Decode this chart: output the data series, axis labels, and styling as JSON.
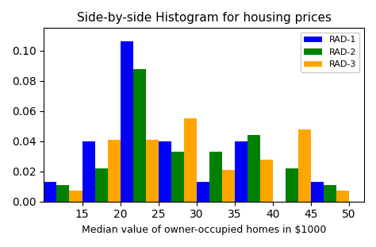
{
  "title": "Side-by-side Histogram for housing prices",
  "xlabel": "Median value of owner-occupied homes in $1000",
  "xticks": [
    15,
    20,
    25,
    30,
    35,
    40,
    45,
    50
  ],
  "yticks": [
    0.0,
    0.02,
    0.04,
    0.06,
    0.08,
    0.1
  ],
  "ylim": [
    0,
    0.115
  ],
  "xlim": [
    10,
    52
  ],
  "bin_centers": [
    12.5,
    17.5,
    22.5,
    27.5,
    32.5,
    37.5,
    42.5,
    47.5
  ],
  "bin_width": 5.0,
  "bar_data": {
    "RAD-1": [
      0.013,
      0.04,
      0.106,
      0.04,
      0.013,
      0.04,
      0.0,
      0.013
    ],
    "RAD-2": [
      0.011,
      0.022,
      0.088,
      0.033,
      0.033,
      0.044,
      0.022,
      0.011
    ],
    "RAD-3": [
      0.007,
      0.041,
      0.041,
      0.055,
      0.021,
      0.028,
      0.048,
      0.007
    ]
  },
  "colors": {
    "RAD-1": "blue",
    "RAD-2": "green",
    "RAD-3": "orange"
  },
  "legend_labels": [
    "RAD-1",
    "RAD-2",
    "RAD-3"
  ],
  "figsize": [
    4.74,
    3.11
  ],
  "dpi": 100
}
